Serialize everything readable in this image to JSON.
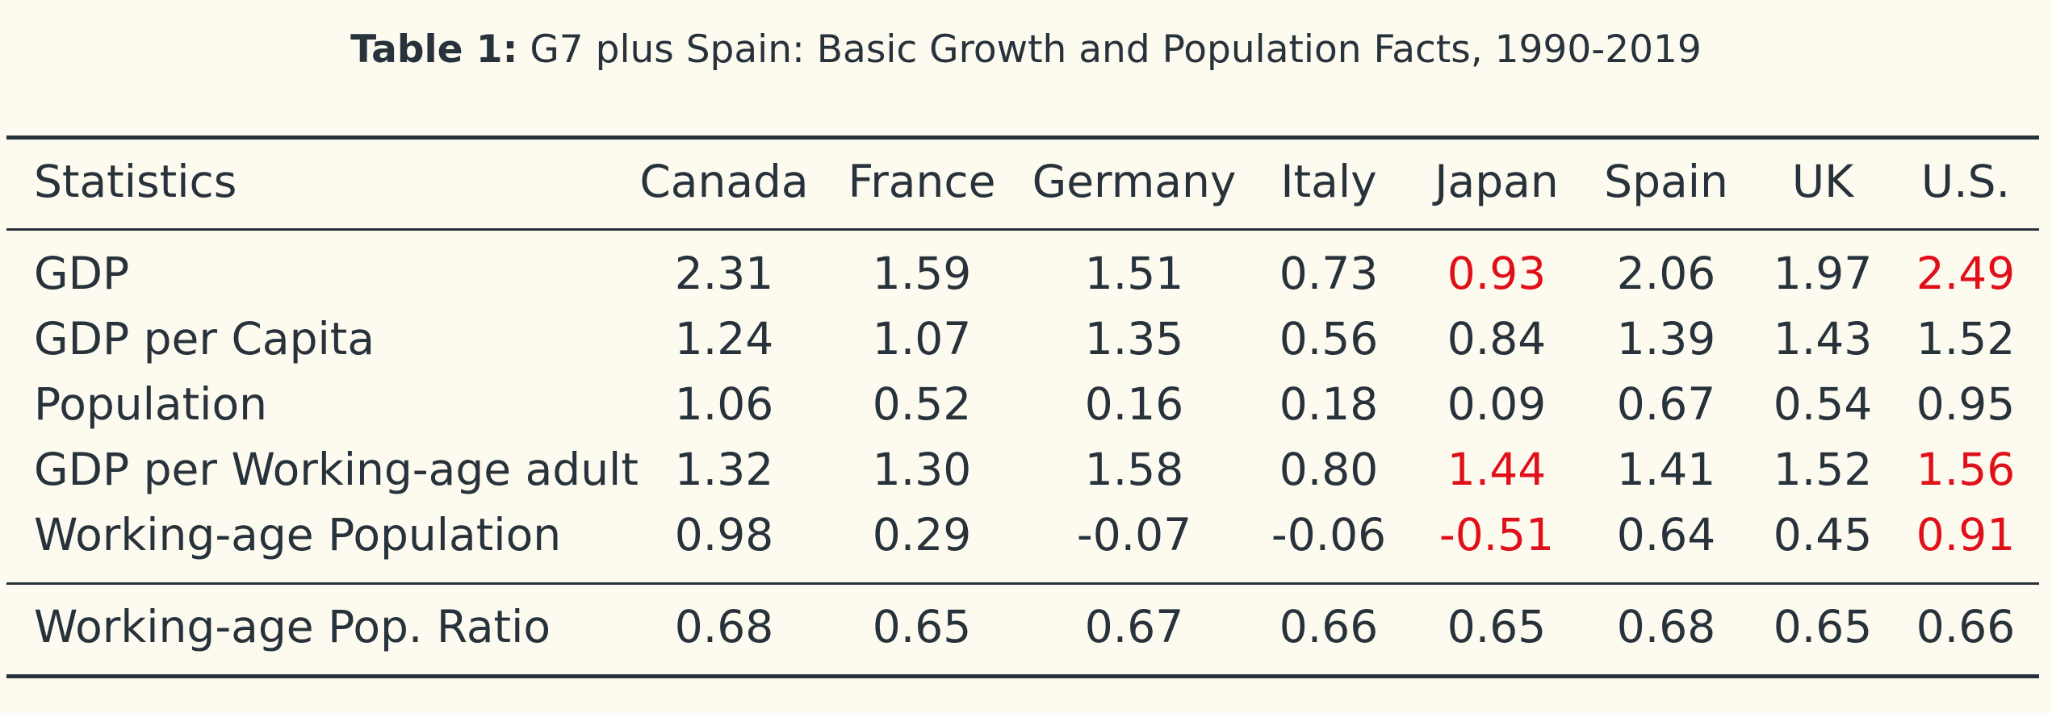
{
  "caption": {
    "label": "Table 1:",
    "text": "G7 plus Spain: Basic Growth and Population Facts, 1990-2019"
  },
  "table": {
    "header": [
      "Statistics",
      "Canada",
      "France",
      "Germany",
      "Italy",
      "Japan",
      "Spain",
      "UK",
      "U.S."
    ],
    "rows": [
      {
        "label": "GDP",
        "values": [
          "2.31",
          "1.59",
          "1.51",
          "0.73",
          "0.93",
          "2.06",
          "1.97",
          "2.49"
        ],
        "highlight": [
          4,
          7
        ]
      },
      {
        "label": "GDP per Capita",
        "values": [
          "1.24",
          "1.07",
          "1.35",
          "0.56",
          "0.84",
          "1.39",
          "1.43",
          "1.52"
        ],
        "highlight": []
      },
      {
        "label": "Population",
        "values": [
          "1.06",
          "0.52",
          "0.16",
          "0.18",
          "0.09",
          "0.67",
          "0.54",
          "0.95"
        ],
        "highlight": []
      },
      {
        "label": "GDP per Working-age adult",
        "values": [
          "1.32",
          "1.30",
          "1.58",
          "0.80",
          "1.44",
          "1.41",
          "1.52",
          "1.56"
        ],
        "highlight": [
          4,
          7
        ]
      },
      {
        "label": "Working-age Population",
        "values": [
          "0.98",
          "0.29",
          "-0.07",
          "-0.06",
          "-0.51",
          "0.64",
          "0.45",
          "0.91"
        ],
        "highlight": [
          4,
          7
        ]
      }
    ],
    "footer_row": {
      "label": "Working-age Pop. Ratio",
      "values": [
        "0.68",
        "0.65",
        "0.67",
        "0.66",
        "0.65",
        "0.68",
        "0.65",
        "0.66"
      ],
      "highlight": []
    }
  },
  "colors": {
    "text": "#27323a",
    "highlight": "#e0101a",
    "background": "#fdfaf0"
  }
}
